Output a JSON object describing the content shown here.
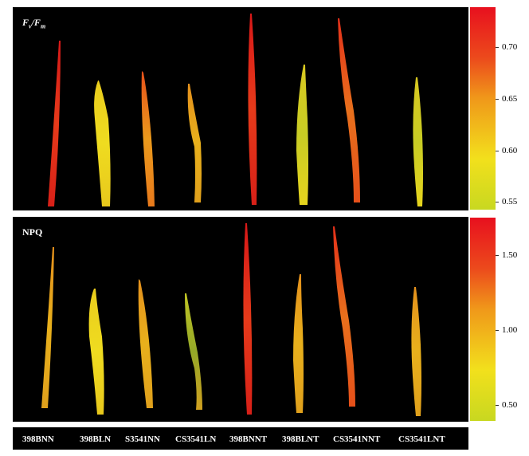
{
  "panels": {
    "top_label": {
      "main": "F",
      "sub1": "v",
      "sep": "/",
      "main2": "F",
      "sub2": "m"
    },
    "bottom_label": "NPQ"
  },
  "colorbar_top": {
    "ticks": [
      "0.70",
      "0.65",
      "0.60",
      "0.55"
    ]
  },
  "colorbar_bottom": {
    "ticks": [
      "1.50",
      "1.00",
      "0.50"
    ]
  },
  "samples": [
    "398BNN",
    "398BLN",
    "S3541NN",
    "CS3541LN",
    "398BNNT",
    "398BLNT",
    "CS3541NNT",
    "CS3541LNT"
  ],
  "colors": {
    "red": "#e01414",
    "orange": "#e8781c",
    "yellow": "#ecd81c",
    "green": "#a8c020"
  }
}
